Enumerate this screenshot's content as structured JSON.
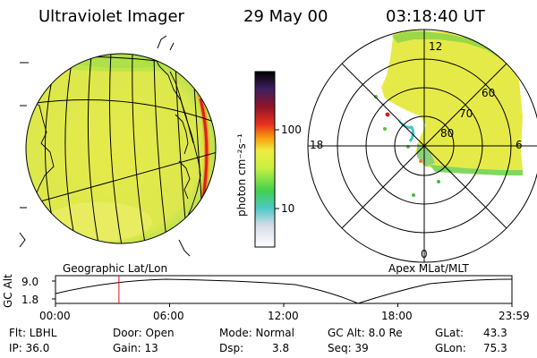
{
  "header": {
    "instrument": "Ultraviolet Imager",
    "date": "29 May 00",
    "time": "03:18:40 UT"
  },
  "colorbar": {
    "unit_label": "photon cm⁻²s⁻¹",
    "ticks": [
      "100",
      "10"
    ]
  },
  "polar_plot": {
    "mlt_labels": [
      "12",
      "18",
      "6",
      "0"
    ],
    "mlat_labels": [
      "60",
      "70",
      "80"
    ]
  },
  "projection_labels": {
    "left": "Geographic Lat/Lon",
    "right": "Apex MLat/MLT"
  },
  "altitude_plot": {
    "axis_title": "GC Alt",
    "y_ticks": [
      "9.0",
      "1.8"
    ],
    "x_ticks": [
      "00:00",
      "06:00",
      "12:00",
      "18:00",
      "23:59"
    ],
    "current_time_fraction": 0.139
  },
  "info": {
    "flt": "Flt: LBHL",
    "ip": "IP: 36.0",
    "door": "Door: Open",
    "gain": "Gain: 13",
    "mode": "Mode: Normal",
    "dsp_label": "Dsp:",
    "dsp_value": "3.8",
    "gc_alt": "GC Alt: 8.0 Re",
    "seq": "Seq: 39",
    "glat_label": "GLat:",
    "glat_value": "43.3",
    "glon_label": "GLon:",
    "glon_value": "75.3"
  },
  "colors": {
    "globe_fill": "#e8e850",
    "dayglow_rim": "#d02020",
    "background": "#ffffff"
  }
}
